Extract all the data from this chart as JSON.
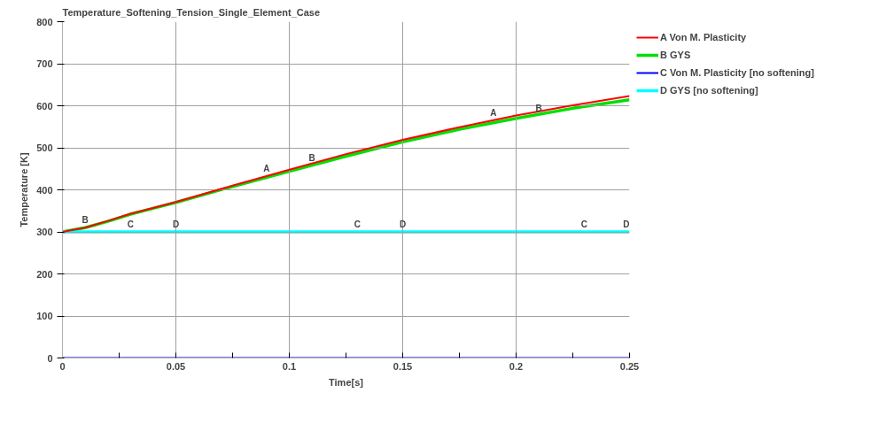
{
  "chart_data": {
    "type": "line",
    "title": "Temperature_Softening_Tension_Single_Element_Case",
    "xlabel": "Time[s]",
    "ylabel": "Temperature [K]",
    "x": [
      0,
      0.01,
      0.02,
      0.03,
      0.04,
      0.05,
      0.075,
      0.1,
      0.125,
      0.15,
      0.175,
      0.2,
      0.225,
      0.25
    ],
    "series": [
      {
        "name": "A Von M. Plasticity",
        "color": "#ff0000",
        "values": [
          300,
          310,
          326,
          343,
          357,
          371,
          410,
          448,
          485,
          519,
          549,
          577,
          601,
          623
        ]
      },
      {
        "name": "B GYS",
        "color": "#00e000",
        "values": [
          300,
          310,
          325,
          342,
          356,
          370,
          408,
          444,
          480,
          514,
          544,
          570,
          594,
          614
        ]
      },
      {
        "name": "C Von M. Plasticity [no softening]",
        "color": "#0000ff",
        "values": [
          null,
          null,
          null,
          null,
          null,
          null,
          null,
          null,
          null,
          null,
          null,
          null,
          null,
          null
        ]
      },
      {
        "name": "D GYS [no softening]",
        "color": "#00ffff",
        "values": [
          300,
          300,
          300,
          300,
          300,
          300,
          300,
          300,
          300,
          300,
          300,
          300,
          300,
          300
        ]
      }
    ],
    "annotations": [
      {
        "text": "A",
        "x": 0.09,
        "y": 433
      },
      {
        "text": "A",
        "x": 0.19,
        "y": 566
      },
      {
        "text": "B",
        "x": 0.01,
        "y": 310
      },
      {
        "text": "B",
        "x": 0.11,
        "y": 458
      },
      {
        "text": "B",
        "x": 0.21,
        "y": 575
      },
      {
        "text": "C",
        "x": 0.03,
        "y": 300
      },
      {
        "text": "C",
        "x": 0.13,
        "y": 300
      },
      {
        "text": "C",
        "x": 0.23,
        "y": 300
      },
      {
        "text": "D",
        "x": 0.05,
        "y": 300
      },
      {
        "text": "D",
        "x": 0.15,
        "y": 300
      },
      {
        "text": "D",
        "x": 0.25,
        "y": 300
      }
    ],
    "xlim": [
      0,
      0.25
    ],
    "ylim": [
      0,
      800
    ],
    "xticks": [
      0,
      {
        "value": 0.025,
        "label": null
      },
      0.05,
      {
        "value": 0.075,
        "label": null
      },
      0.1,
      {
        "value": 0.125,
        "label": null
      },
      0.15,
      {
        "value": 0.175,
        "label": null
      },
      0.2,
      {
        "value": 0.225,
        "label": null
      },
      0.25
    ],
    "yticks": [
      0,
      100,
      200,
      300,
      400,
      500,
      600,
      700,
      800
    ],
    "grid": true,
    "legend": "right",
    "line_style": "solid",
    "marker": "none"
  }
}
